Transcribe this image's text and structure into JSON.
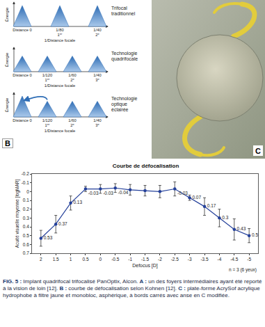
{
  "panel_a": {
    "rows": [
      {
        "name_lines": [
          "Trifocal",
          "traditionnel"
        ],
        "y_label": "Énergie",
        "x_title": "1/Distance focale",
        "energy": [
          1,
          1,
          1
        ],
        "ticks": [
          {
            "text": "Distance 0"
          },
          {
            "text": "1/80",
            "num": "1",
            "sup": "er"
          },
          {
            "text": "1/40",
            "num": "2",
            "sup": "e"
          }
        ]
      },
      {
        "name_lines": [
          "Technologie",
          "quadrifocale"
        ],
        "y_label": "Énergie",
        "x_title": "1/Distance focale",
        "energy": [
          0.75,
          0.75,
          0.75,
          0.75
        ],
        "ticks": [
          {
            "text": "Distance 0"
          },
          {
            "text": "1/120",
            "num": "1",
            "sup": "er"
          },
          {
            "text": "1/60",
            "num": "2",
            "sup": "e"
          },
          {
            "text": "1/40",
            "num": "3",
            "sup": "e"
          }
        ]
      },
      {
        "name_lines": [
          "Technologie",
          "optique",
          "éclairée"
        ],
        "y_label": "Énergie",
        "x_title": "1/Distance focale",
        "energy": [
          1,
          0.75,
          0.75,
          0.75
        ],
        "ticks": [
          {
            "text": "Distance 0"
          },
          {
            "text": "1/120",
            "num": "1",
            "sup": "er"
          },
          {
            "text": "1/60",
            "num": "2",
            "sup": "e"
          },
          {
            "text": "1/40",
            "num": "3",
            "sup": "e"
          }
        ]
      }
    ]
  },
  "panel_b": {
    "label": "B"
  },
  "chart_data": {
    "type": "line",
    "title": "Courbe de défocalisation",
    "x_label": "Defocus [D]",
    "y_label": "Acuité visuelle moyenne [logMAR]",
    "annotations": [
      "n = 3 (6 yeux)"
    ],
    "x": [
      2,
      1.5,
      1,
      0.5,
      0,
      -0.5,
      -1,
      -1.5,
      -2,
      -2.5,
      -3,
      -3.5,
      -4,
      -4.5,
      -5
    ],
    "values": [
      0.53,
      0.37,
      0.13,
      -0.03,
      -0.03,
      -0.04,
      -0.02,
      -0.01,
      0,
      -0.03,
      0.07,
      0.17,
      0.3,
      0.43,
      0.5
    ],
    "value_labels": [
      "0.53",
      "0.37",
      "0.13",
      "-0.03",
      "-0.03",
      "-0.04",
      null,
      null,
      null,
      "-0.03",
      "0.07",
      "0.17",
      "0.3",
      "0.43",
      "0.5"
    ],
    "errors": [
      0.09,
      0.1,
      0.08,
      0.03,
      0.05,
      0.05,
      0.06,
      0.06,
      0.07,
      0.08,
      0.03,
      0.1,
      0.1,
      0.12,
      0.08
    ],
    "color": "#24409a",
    "marker": "circle",
    "data_labels": true,
    "xlim": [
      2.3,
      -5.3
    ],
    "xticks": [
      2,
      1.5,
      1,
      0.5,
      0,
      -0.5,
      -1,
      -1.5,
      -2,
      -2.5,
      -3,
      -3.5,
      -4,
      -4.5,
      -5
    ],
    "ylim": [
      0.7,
      -0.2
    ],
    "yticks": [
      -0.2,
      -0.1,
      0,
      0.1,
      0.2,
      0.3,
      0.4,
      0.5,
      0.6,
      0.7
    ],
    "grid": false
  },
  "panel_c": {
    "label": "C"
  },
  "caption": {
    "figure": "FIG. 5 :",
    "text": "Implant quadrifocal trifocalisé PanOptix, Alcon.",
    "parts": [
      {
        "label": "A :",
        "text": "un des foyers intermédiaires ayant été reporté à la vision de loin [12]."
      },
      {
        "label": "B :",
        "text": "courbe de défocalisation selon Kohnen [12]."
      },
      {
        "label": "C :",
        "text": "plate-forme AcrySof acrylique hydrophobe à filtre jaune et monobloc, asphérique, à bords carrés avec anse en C modifiée."
      }
    ]
  }
}
